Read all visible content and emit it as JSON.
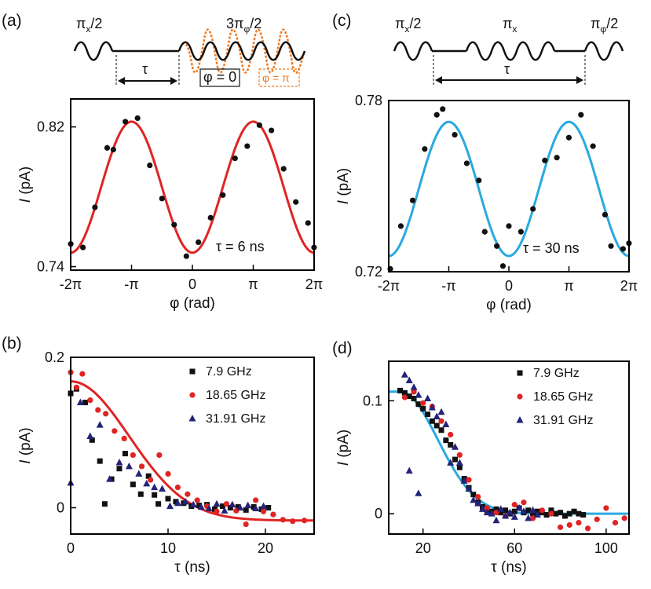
{
  "pulse_a": {
    "label_left": "π",
    "label_left_sub": "x",
    "label_left_suf": "/2",
    "label_right_pre": "3π",
    "label_right_sub": "φ",
    "label_right_suf": "/2",
    "tau": "τ",
    "phase0": "φ = 0",
    "phasepi": "φ = π"
  },
  "pulse_c": {
    "p1": "π",
    "p1_sub": "x",
    "p1_suf": "/2",
    "p2": "π",
    "p2_sub": "x",
    "p3": "π",
    "p3_sub": "φ",
    "p3_suf": "/2",
    "tau": "τ"
  },
  "colors": {
    "red": "#e02424",
    "blue": "#29a9e0",
    "black": "#111111",
    "navy": "#23237a",
    "orange": "#f07a22"
  },
  "chart_data": [
    {
      "id": "a",
      "panel_label": "(a)",
      "type": "scatter",
      "xlabel": "φ (rad)",
      "ylabel_italic": "I",
      "ylabel_rest": " (pA)",
      "xlim": [
        -6.2832,
        6.2832
      ],
      "ylim": [
        0.738,
        0.836
      ],
      "xticks": [
        -6.2832,
        -3.1416,
        0,
        3.1416,
        6.2832
      ],
      "xticklabels": [
        "-2π",
        "-π",
        "0",
        "π",
        "2π"
      ],
      "yticks": [
        0.74,
        0.82
      ],
      "yticklabels": [
        "0.74",
        "0.82"
      ],
      "annotation": "τ = 6 ns",
      "points": [
        [
          -6.28,
          0.753
        ],
        [
          -5.65,
          0.751
        ],
        [
          -5.03,
          0.774
        ],
        [
          -4.4,
          0.808
        ],
        [
          -4.08,
          0.807
        ],
        [
          -3.46,
          0.823
        ],
        [
          -2.83,
          0.825
        ],
        [
          -2.2,
          0.798
        ],
        [
          -1.57,
          0.779
        ],
        [
          -0.94,
          0.764
        ],
        [
          -0.31,
          0.746
        ],
        [
          0.31,
          0.754
        ],
        [
          0.94,
          0.768
        ],
        [
          1.57,
          0.781
        ],
        [
          2.2,
          0.802
        ],
        [
          2.83,
          0.809
        ],
        [
          3.46,
          0.821
        ],
        [
          4.08,
          0.818
        ],
        [
          4.71,
          0.796
        ],
        [
          5.34,
          0.777
        ],
        [
          5.97,
          0.765
        ],
        [
          6.28,
          0.751
        ]
      ],
      "fit": {
        "name": "fit",
        "offset": 0.7855,
        "amplitude": 0.0375,
        "period": 6.2832,
        "phase": -3.1416
      }
    },
    {
      "id": "c",
      "panel_label": "(c)",
      "type": "scatter",
      "xlabel": "φ (rad)",
      "ylabel_italic": "I",
      "ylabel_rest": " (pA)",
      "xlim": [
        -6.2832,
        6.2832
      ],
      "ylim": [
        0.72,
        0.78
      ],
      "xticks": [
        -6.2832,
        -3.1416,
        0,
        3.1416,
        6.2832
      ],
      "xticklabels": [
        "-2π",
        "-π",
        "0",
        "π",
        "2π"
      ],
      "yticks": [
        0.72,
        0.78
      ],
      "yticklabels": [
        "0.72",
        "0.78"
      ],
      "annotation": "τ = 30 ns",
      "points": [
        [
          -6.2,
          0.721
        ],
        [
          -5.65,
          0.736
        ],
        [
          -5.03,
          0.745
        ],
        [
          -4.4,
          0.763
        ],
        [
          -3.77,
          0.775
        ],
        [
          -3.46,
          0.777
        ],
        [
          -2.83,
          0.768
        ],
        [
          -2.2,
          0.758
        ],
        [
          -1.57,
          0.752
        ],
        [
          -1.26,
          0.734
        ],
        [
          -0.63,
          0.729
        ],
        [
          -0.31,
          0.722
        ],
        [
          0.0,
          0.736
        ],
        [
          0.63,
          0.734
        ],
        [
          1.26,
          0.742
        ],
        [
          1.88,
          0.759
        ],
        [
          2.51,
          0.76
        ],
        [
          3.14,
          0.767
        ],
        [
          3.77,
          0.775
        ],
        [
          4.4,
          0.764
        ],
        [
          5.03,
          0.74
        ],
        [
          5.34,
          0.729
        ],
        [
          5.97,
          0.728
        ],
        [
          6.28,
          0.73
        ]
      ],
      "fit": {
        "name": "fit",
        "offset": 0.749,
        "amplitude": 0.0235,
        "period": 6.2832,
        "phase": -3.1416
      }
    },
    {
      "id": "b",
      "panel_label": "(b)",
      "type": "scatter",
      "xlabel": "τ (ns)",
      "ylabel_italic": "I",
      "ylabel_rest": " (pA)",
      "xlim": [
        0,
        25
      ],
      "ylim": [
        -0.035,
        0.2
      ],
      "xticks": [
        0,
        10,
        20
      ],
      "xticklabels": [
        "0",
        "10",
        "20"
      ],
      "yticks": [
        0,
        0.2
      ],
      "yticklabels": [
        "0",
        "0.2"
      ],
      "legend": [
        "7.9 GHz",
        "18.65 GHz",
        "31.91 GHz"
      ],
      "series": [
        {
          "name": "7.9 GHz",
          "marker": "square",
          "color": "#111111",
          "points": [
            [
              0,
              0.152
            ],
            [
              0.6,
              0.158
            ],
            [
              1.5,
              0.14
            ],
            [
              2.2,
              0.09
            ],
            [
              3,
              0.062
            ],
            [
              3.5,
              0.005
            ],
            [
              4.2,
              0.038
            ],
            [
              5,
              0.052
            ],
            [
              5.6,
              0.072
            ],
            [
              6.4,
              0.031
            ],
            [
              7.2,
              0.018
            ],
            [
              8,
              0.042
            ],
            [
              8.6,
              0.017
            ],
            [
              9,
              0.005
            ],
            [
              10,
              0.012
            ],
            [
              10.8,
              0.008
            ],
            [
              11.6,
              0.006
            ],
            [
              12.4,
              0.002
            ],
            [
              13.2,
              0.003
            ],
            [
              14,
              0.004
            ],
            [
              14.8,
              -0.002
            ],
            [
              15.6,
              0.002
            ],
            [
              16.4,
              0.0
            ],
            [
              17.2,
              0.001
            ],
            [
              18,
              -0.003
            ],
            [
              18.8,
              0.001
            ],
            [
              19.6,
              -0.002
            ],
            [
              20.3,
              0.0
            ]
          ]
        },
        {
          "name": "18.65 GHz",
          "marker": "circle",
          "color": "#e02424",
          "points": [
            [
              0,
              0.18
            ],
            [
              0.6,
              0.16
            ],
            [
              1.2,
              0.178
            ],
            [
              2,
              0.143
            ],
            [
              2.8,
              0.13
            ],
            [
              3.6,
              0.125
            ],
            [
              4.5,
              0.102
            ],
            [
              5.5,
              0.092
            ],
            [
              6.4,
              0.07
            ],
            [
              7.3,
              0.055
            ],
            [
              8.2,
              0.037
            ],
            [
              9.1,
              0.07
            ],
            [
              10,
              0.045
            ],
            [
              11,
              0.027
            ],
            [
              12,
              0.018
            ],
            [
              13,
              0.01
            ],
            [
              14,
              0.002
            ],
            [
              15,
              -0.005
            ],
            [
              16,
              0.005
            ],
            [
              17,
              -0.004
            ],
            [
              18,
              -0.022
            ],
            [
              19,
              0.01
            ],
            [
              19.8,
              -0.005
            ],
            [
              20.8,
              -0.009
            ],
            [
              21.8,
              -0.016
            ],
            [
              22.8,
              -0.018
            ],
            [
              24,
              -0.017
            ]
          ]
        },
        {
          "name": "31.91 GHz",
          "marker": "triangle",
          "color": "#23237a",
          "points": [
            [
              0,
              0.033
            ],
            [
              1,
              0.14
            ],
            [
              2,
              0.095
            ],
            [
              3,
              0.11
            ],
            [
              4,
              0.038
            ],
            [
              5,
              0.06
            ],
            [
              6,
              0.055
            ],
            [
              7,
              0.045
            ],
            [
              7.8,
              0.032
            ],
            [
              8.6,
              0.027
            ],
            [
              9.4,
              0.025
            ],
            [
              10.2,
              0.002
            ],
            [
              11,
              0.006
            ],
            [
              11.8,
              0.008
            ],
            [
              12.6,
              0.004
            ],
            [
              13.4,
              0.001
            ],
            [
              14.2,
              -0.001
            ],
            [
              15,
              0.005
            ],
            [
              15.8,
              -0.004
            ],
            [
              16.6,
              0.004
            ],
            [
              17.4,
              0.0
            ],
            [
              18.2,
              0.003
            ],
            [
              19,
              -0.001
            ],
            [
              19.8,
              0.002
            ]
          ]
        }
      ],
      "fit": {
        "name": "fit",
        "form": "gaussian",
        "A": 0.185,
        "sigma": 6.0,
        "offset": -0.017
      }
    },
    {
      "id": "d",
      "panel_label": "(d)",
      "type": "scatter",
      "xlabel": "τ (ns)",
      "ylabel_italic": "I",
      "ylabel_rest": " (pA)",
      "xlim": [
        5,
        110
      ],
      "ylim": [
        -0.018,
        0.135
      ],
      "xticks": [
        20,
        60,
        100
      ],
      "xticklabels": [
        "20",
        "60",
        "100"
      ],
      "yticks": [
        0,
        0.1
      ],
      "yticklabels": [
        "0",
        "0.1"
      ],
      "legend": [
        "7.9 GHz",
        "18.65 GHz",
        "31.91 GHz"
      ],
      "series": [
        {
          "name": "7.9 GHz",
          "marker": "square",
          "color": "#111111",
          "points": [
            [
              10,
              0.109
            ],
            [
              12,
              0.107
            ],
            [
              14,
              0.104
            ],
            [
              16,
              0.102
            ],
            [
              18,
              0.097
            ],
            [
              20,
              0.093
            ],
            [
              22,
              0.088
            ],
            [
              24,
              0.082
            ],
            [
              26,
              0.078
            ],
            [
              28,
              0.074
            ],
            [
              30,
              0.065
            ],
            [
              32,
              0.061
            ],
            [
              34,
              0.048
            ],
            [
              36,
              0.041
            ],
            [
              38,
              0.031
            ],
            [
              40,
              0.023
            ],
            [
              42,
              0.017
            ],
            [
              44,
              0.01
            ],
            [
              46,
              0.006
            ],
            [
              48,
              0.003
            ],
            [
              50,
              0.002
            ],
            [
              52,
              0.004
            ],
            [
              54,
              0.001
            ],
            [
              56,
              0.003
            ],
            [
              58,
              0.0
            ],
            [
              60,
              0.002
            ],
            [
              62,
              0.005
            ],
            [
              64,
              0.001
            ],
            [
              66,
              0.003
            ],
            [
              68,
              0.0
            ],
            [
              70,
              0.002
            ],
            [
              72,
              0.001
            ],
            [
              74,
              -0.001
            ],
            [
              76,
              0.003
            ],
            [
              78,
              0.0
            ],
            [
              80,
              0.001
            ],
            [
              82,
              -0.002
            ],
            [
              84,
              0.0
            ],
            [
              86,
              0.002
            ],
            [
              88,
              0.0
            ],
            [
              90,
              -0.001
            ]
          ]
        },
        {
          "name": "18.65 GHz",
          "marker": "circle",
          "color": "#e02424",
          "points": [
            [
              12,
              0.103
            ],
            [
              16,
              0.108
            ],
            [
              20,
              0.098
            ],
            [
              24,
              0.095
            ],
            [
              28,
              0.082
            ],
            [
              32,
              0.07
            ],
            [
              36,
              0.052
            ],
            [
              40,
              0.03
            ],
            [
              44,
              0.015
            ],
            [
              48,
              0.005
            ],
            [
              52,
              0.001
            ],
            [
              56,
              -0.002
            ],
            [
              60,
              0.008
            ],
            [
              64,
              0.01
            ],
            [
              68,
              -0.004
            ],
            [
              72,
              0.003
            ],
            [
              76,
              0.0
            ],
            [
              80,
              -0.012
            ],
            [
              84,
              -0.01
            ],
            [
              88,
              -0.008
            ],
            [
              92,
              -0.013
            ],
            [
              96,
              -0.005
            ],
            [
              100,
              0.005
            ],
            [
              104,
              -0.008
            ],
            [
              108,
              -0.004
            ]
          ]
        },
        {
          "name": "31.91 GHz",
          "marker": "triangle",
          "color": "#23237a",
          "points": [
            [
              12,
              0.123
            ],
            [
              14,
              0.118
            ],
            [
              16,
              0.112
            ],
            [
              18,
              0.105
            ],
            [
              22,
              0.102
            ],
            [
              24,
              0.094
            ],
            [
              26,
              0.086
            ],
            [
              28,
              0.09
            ],
            [
              30,
              0.079
            ],
            [
              32,
              0.045
            ],
            [
              14,
              0.038
            ],
            [
              18,
              0.018
            ],
            [
              34,
              0.059
            ],
            [
              36,
              0.045
            ],
            [
              38,
              0.029
            ],
            [
              40,
              0.022
            ],
            [
              42,
              0.012
            ],
            [
              44,
              0.009
            ],
            [
              46,
              0.004
            ],
            [
              48,
              0.001
            ],
            [
              50,
              0.0
            ],
            [
              52,
              -0.006
            ],
            [
              54,
              0.004
            ],
            [
              56,
              -0.002
            ],
            [
              58,
              0.001
            ],
            [
              60,
              -0.003
            ],
            [
              62,
              0.005
            ],
            [
              64,
              0.002
            ],
            [
              66,
              -0.004
            ],
            [
              68,
              0.003
            ],
            [
              70,
              -0.001
            ]
          ]
        }
      ],
      "fit": {
        "name": "fit",
        "form": "gaussian",
        "A": 0.108,
        "sigma": 16.5,
        "center": 10,
        "offset": 0.0
      }
    }
  ]
}
